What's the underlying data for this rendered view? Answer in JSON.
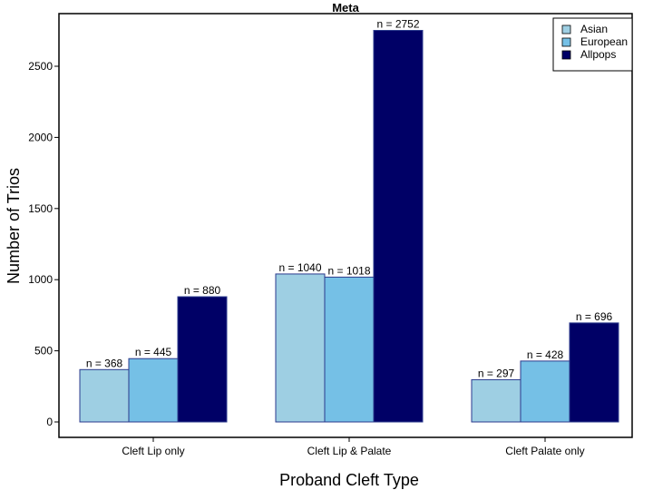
{
  "chart_data": {
    "type": "bar",
    "title": "Meta",
    "xlabel": "Proband Cleft Type",
    "ylabel": "Number of Trios",
    "categories": [
      "Cleft Lip only",
      "Cleft Lip & Palate",
      "Cleft Palate only"
    ],
    "series": [
      {
        "name": "Asian",
        "values": [
          368,
          1040,
          297
        ],
        "color": "#9ecfe3"
      },
      {
        "name": "European",
        "values": [
          445,
          1018,
          428
        ],
        "color": "#75c0e6"
      },
      {
        "name": "Allpops",
        "values": [
          880,
          2752,
          696
        ],
        "color": "#000066"
      }
    ],
    "data_label_prefix": "n = ",
    "bar_edge_color": "#2b3a8c",
    "ylim": [
      0,
      2870
    ],
    "yticks": [
      0,
      500,
      1000,
      1500,
      2000,
      2500
    ],
    "grid": false,
    "legend": "top-right"
  }
}
